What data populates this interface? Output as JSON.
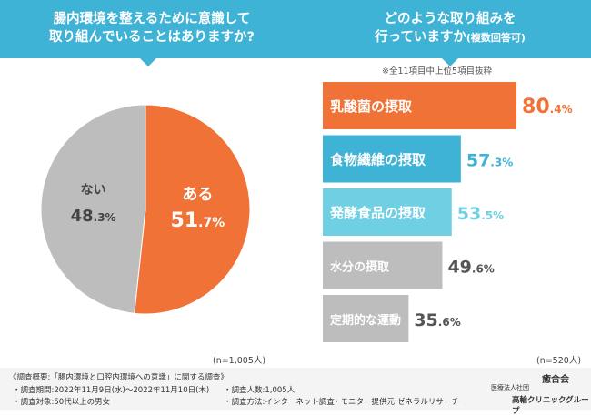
{
  "header": {
    "left_question_line1": "腸内環境を整えるために意識して",
    "left_question_line2": "取り組んでいることはありますか?",
    "right_question_line1": "どのような取り組みを",
    "right_question_line2": "行っていますか",
    "right_question_sub": "(複数回答可)"
  },
  "note": "※全11項目中上位5項目抜粋",
  "sample_left": "(n=1,005人)",
  "sample_right": "(n=520人)",
  "colors": {
    "header": "#3fb3d6",
    "orange": "#f07236",
    "blue": "#3fb3d6",
    "lightblue": "#6fd0e3",
    "gray": "#b5b5b5",
    "bar_gray": "#bdbdbd"
  },
  "chart_data": [
    {
      "type": "pie",
      "slices": [
        {
          "label": "ある",
          "value": 51.7,
          "color": "#f07236"
        },
        {
          "label": "ない",
          "value": 48.3,
          "color": "#bdbdbd"
        }
      ]
    },
    {
      "type": "bar",
      "orientation": "horizontal",
      "categories": [
        "乳酸菌の摂取",
        "食物繊維の摂取",
        "発酵食品の摂取",
        "水分の摂取",
        "定期的な運動"
      ],
      "values": [
        80.4,
        57.3,
        53.5,
        49.6,
        35.6
      ],
      "colors": [
        "#f07236",
        "#3fb3d6",
        "#6fd0e3",
        "#bdbdbd",
        "#bdbdbd"
      ],
      "value_colors": [
        "#f07236",
        "#3fb3d6",
        "#6fd0e3",
        "#555555",
        "#555555"
      ]
    }
  ],
  "footer": {
    "survey_title": "《調査概要:「腸内環境と口腔内環境への意識」に関する調査》",
    "period": "・調査期間:2022年11月9日(水)〜2022年11月10日(木)",
    "target": "・調査対象:50代以上の男女",
    "count": "・調査人数:1,005人",
    "method": "・調査方法:インターネット調査",
    "provider": "・モニター提供元:ゼネラルリサーチ",
    "org_type": "医療法人社団",
    "org_name": "癒合会",
    "clinic_group": "高輪クリニックグループ"
  }
}
